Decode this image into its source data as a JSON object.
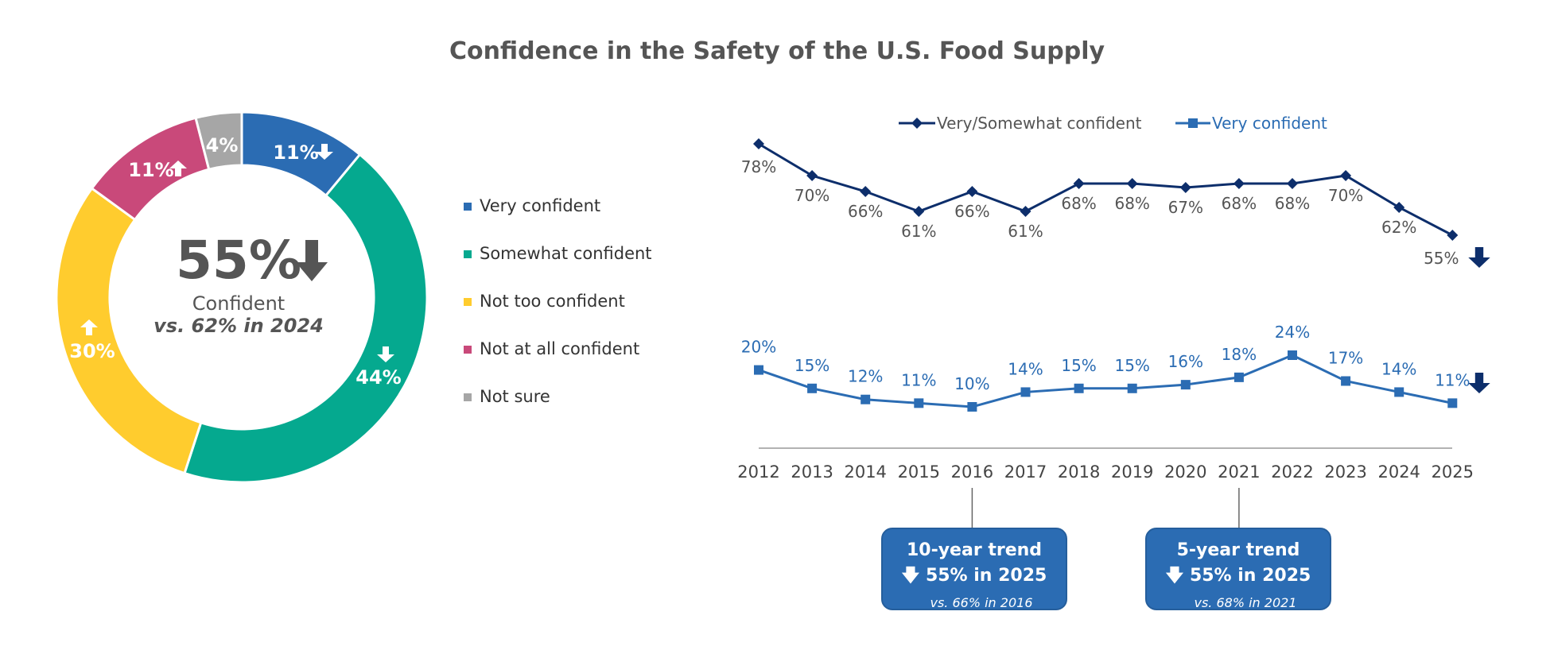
{
  "title": "Confidence in the Safety of the U.S. Food Supply",
  "colors": {
    "very_confident": "#2b6cb3",
    "somewhat_confident": "#05a98f",
    "not_too_confident": "#ffcc2e",
    "not_at_all_confident": "#c9497a",
    "not_sure": "#a6a6a6",
    "dark_series": "#0d2e6b",
    "light_series": "#2b6cb3",
    "text_gray": "#555555"
  },
  "center": {
    "value": "55%",
    "label": "Confident",
    "compare": "vs. 62% in 2024"
  },
  "chart_data": [
    {
      "type": "pie",
      "variant": "donut",
      "slices": [
        {
          "name": "Very confident",
          "value": 11,
          "label": "11%",
          "change": "down"
        },
        {
          "name": "Somewhat confident",
          "value": 44,
          "label": "44%",
          "change": "down"
        },
        {
          "name": "Not too confident",
          "value": 30,
          "label": "30%",
          "change": "up"
        },
        {
          "name": "Not at all confident",
          "value": 11,
          "label": "11%",
          "change": "up"
        },
        {
          "name": "Not sure",
          "value": 4,
          "label": "4%",
          "change": "none"
        }
      ],
      "legend": [
        "Very confident",
        "Somewhat confident",
        "Not too confident",
        "Not at all confident",
        "Not sure"
      ]
    },
    {
      "type": "line",
      "x": [
        "2012",
        "2013",
        "2014",
        "2015",
        "2016",
        "2017",
        "2018",
        "2019",
        "2020",
        "2021",
        "2022",
        "2023",
        "2024",
        "2025"
      ],
      "series": [
        {
          "name": "Very/Somewhat confident",
          "marker": "diamond",
          "values": [
            78,
            70,
            66,
            61,
            66,
            61,
            68,
            68,
            67,
            68,
            68,
            70,
            62,
            55
          ]
        },
        {
          "name": "Very confident",
          "marker": "square",
          "values": [
            20,
            15,
            12,
            11,
            10,
            14,
            15,
            15,
            16,
            18,
            24,
            17,
            14,
            11
          ]
        }
      ],
      "legend_position": "top"
    }
  ],
  "trends": [
    {
      "title": "10-year trend",
      "headline": "55% in 2025",
      "compare": "vs. 66% in 2016",
      "year": "2016"
    },
    {
      "title": "5-year trend",
      "headline": "55% in 2025",
      "compare": "vs. 68% in 2021",
      "year": "2021"
    }
  ]
}
